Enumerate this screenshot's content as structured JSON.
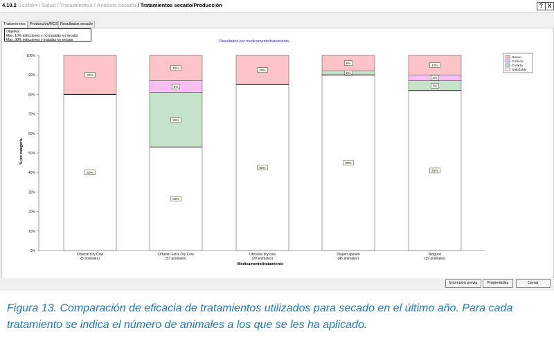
{
  "breadcrumb": {
    "number": "4.10.2",
    "items": [
      "Gestión",
      "Salud / Tratamientos",
      "Análisis secado"
    ],
    "current": "Tratamientos secado/Producción",
    "separator": "/"
  },
  "window_buttons": {
    "help": "?",
    "close": "X"
  },
  "tabs": [
    {
      "label": "Tratamientos",
      "active": true
    },
    {
      "label": "Producción/RCS",
      "active": false
    },
    {
      "label": "Resultados secado",
      "active": false
    }
  ],
  "objective": {
    "title": "Objetivo:",
    "lines": [
      "Máx. 10% infecciones y no tratadas en secado",
      "Máx. 30% infecciones y tratadas en secado"
    ]
  },
  "chart_data": {
    "type": "bar",
    "stacked": true,
    "title": "Resultados por medicamento/tratamiento",
    "xlabel": "Medicamento/tratamiento",
    "ylabel": "% por categoría",
    "ylim": [
      0,
      100
    ],
    "yticks": [
      "0%",
      "10%",
      "20%",
      "30%",
      "40%",
      "50%",
      "60%",
      "70%",
      "80%",
      "90%",
      "100%"
    ],
    "categories": [
      {
        "name": "Orbenin Dry Cow",
        "animals": "(5 animales)"
      },
      {
        "name": "Orbenin Extra Dry Cow",
        "animals": "(53 animales)"
      },
      {
        "name": "Ubrostar dry cow",
        "animals": "(20 animales)"
      },
      {
        "name": "Dispen spenen",
        "animals": "(45 animales)"
      },
      {
        "name": "Ninguno",
        "animals": "(39 animales)"
      }
    ],
    "series": [
      {
        "name": "Saludable",
        "color": "#ffffff",
        "values": [
          80,
          53,
          85,
          90,
          82
        ],
        "labels": [
          "80%",
          "53%",
          "85%",
          "90%",
          "82%"
        ]
      },
      {
        "name": "Curada",
        "color": "#c4e3c9",
        "values": [
          0,
          28,
          0,
          2,
          5
        ],
        "labels": [
          "",
          "28%",
          "",
          "2%",
          "5%"
        ]
      },
      {
        "name": "Crónica",
        "color": "#f7bff2",
        "values": [
          0,
          6,
          0,
          0,
          3
        ],
        "labels": [
          "",
          "6%",
          "",
          "",
          "3%"
        ]
      },
      {
        "name": "Nuevo",
        "color": "#fbc4c7",
        "values": [
          20,
          13,
          15,
          8,
          10
        ],
        "labels": [
          "20%",
          "13%",
          "15%",
          "8%",
          "10%"
        ]
      }
    ],
    "legend_order": [
      "Nuevo",
      "Crónica",
      "Curada",
      "Saludable"
    ],
    "legend_position": "right",
    "grid": false
  },
  "buttons": {
    "print_preview": "Impresión previa",
    "properties": "Propiedades",
    "close": "Cerrar"
  },
  "caption": {
    "figure": "Figura 13.",
    "text": "Comparación de eficacia de tratamientos utilizados para secado en el último año. Para cada tratamiento se indica el número de animales a los que se les ha aplicado."
  }
}
